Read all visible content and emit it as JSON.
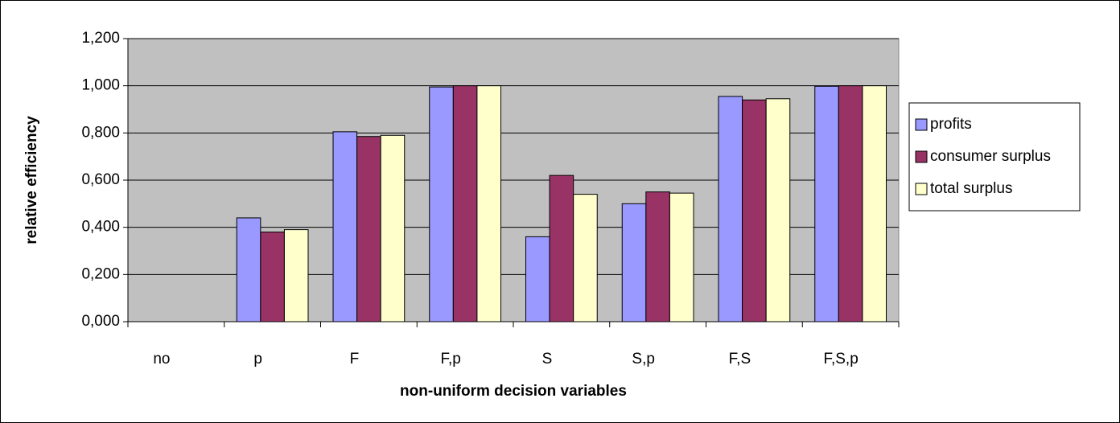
{
  "chart_data": {
    "type": "bar",
    "x_label": "non-uniform decision variables",
    "y_label": "relative efficiency",
    "categories": [
      "no",
      "p",
      "F",
      "F,p",
      "S",
      "S,p",
      "F,S",
      "F,S,p"
    ],
    "series": [
      {
        "name": "profits",
        "color": "#9999ff",
        "values": [
          0,
          0.44,
          0.805,
          0.995,
          0.36,
          0.5,
          0.955,
          0.998
        ]
      },
      {
        "name": "consumer surplus",
        "color": "#993366",
        "values": [
          0,
          0.38,
          0.785,
          1.0,
          0.62,
          0.55,
          0.94,
          1.0
        ]
      },
      {
        "name": "total surplus",
        "color": "#ffffcc",
        "values": [
          0,
          0.39,
          0.79,
          1.0,
          0.54,
          0.545,
          0.945,
          1.0
        ]
      }
    ],
    "ylim": [
      0,
      1.2
    ],
    "yticks": [
      {
        "value": 0,
        "label": "0,000"
      },
      {
        "value": 0.2,
        "label": "0,200"
      },
      {
        "value": 0.4,
        "label": "0,400"
      },
      {
        "value": 0.6,
        "label": "0,600"
      },
      {
        "value": 0.8,
        "label": "0,800"
      },
      {
        "value": 1.0,
        "label": "1,000"
      },
      {
        "value": 1.2,
        "label": "1,200"
      }
    ],
    "grid": true,
    "plot_background": "#c0c0c0",
    "legend_position": "right"
  }
}
